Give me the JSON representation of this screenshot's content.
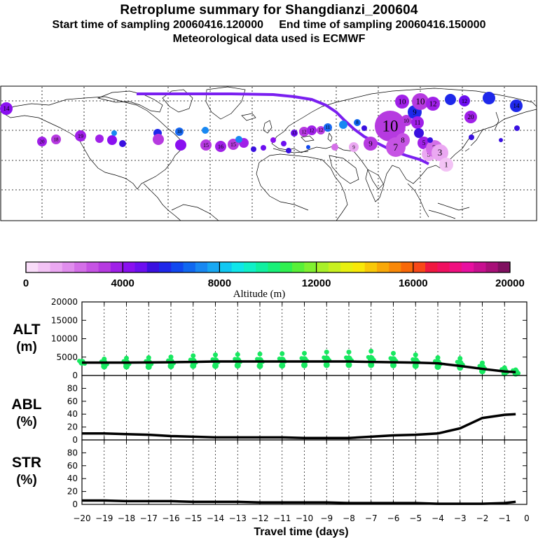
{
  "title": "Retroplume summary for Shangdianzi_200604",
  "subtitle": "Start time of sampling 20060416.120000     End time of sampling 20060416.150000",
  "met_note": "Meteorological data used is ECMWF",
  "colorbar": {
    "label": "Altitude (m)",
    "ticks": [
      "0",
      "4000",
      "8000",
      "12000",
      "16000",
      "20000"
    ],
    "min": 0,
    "max": 20000,
    "colors": [
      "#f9dcf9",
      "#f3c3f5",
      "#eba8f2",
      "#e08ded",
      "#d46fe8",
      "#c653e4",
      "#b63ae0",
      "#a020e8",
      "#8a10f0",
      "#6c0ff0",
      "#3a10e0",
      "#1e28ea",
      "#1048f0",
      "#1068f0",
      "#1888f2",
      "#18a8f2",
      "#10c8f2",
      "#10e6ea",
      "#10f0c8",
      "#10f0a0",
      "#18f078",
      "#30f050",
      "#58f038",
      "#80f030",
      "#a8f028",
      "#c8f020",
      "#e8f010",
      "#f8e808",
      "#f8c808",
      "#f8a808",
      "#f88808",
      "#f86808",
      "#f84818",
      "#f01840",
      "#f01060",
      "#f01080",
      "#e810a0",
      "#c81090",
      "#a81078",
      "#801060"
    ]
  },
  "map_markers": {
    "labels": [
      "1",
      "2",
      "3",
      "4",
      "5",
      "6",
      "7",
      "8",
      "9",
      "10",
      "10",
      "10",
      "11",
      "12",
      "13",
      "14",
      "15",
      "16",
      "17",
      "18",
      "19",
      "20"
    ]
  },
  "chart_data": [
    {
      "type": "scatter",
      "panel": "ALT",
      "ylabel": "ALT\n(m)",
      "ylim": [
        0,
        20000
      ],
      "yticks": [
        "0",
        "5000",
        "10000",
        "15000",
        "20000"
      ],
      "line": {
        "x": [
          -20,
          -19,
          -18,
          -17,
          -16,
          -15,
          -14,
          -13,
          -12,
          -11,
          -10,
          -9,
          -8,
          -7,
          -6,
          -5,
          -4,
          -3,
          -2,
          -1,
          -0.5
        ],
        "y": [
          3500,
          3500,
          3500,
          3550,
          3600,
          3700,
          3800,
          3800,
          3800,
          3800,
          3800,
          3800,
          3800,
          3700,
          3600,
          3500,
          3300,
          2600,
          1800,
          1100,
          900
        ]
      },
      "points": {
        "x": [
          -20,
          -19,
          -18,
          -17,
          -16,
          -15,
          -14,
          -13,
          -12,
          -11,
          -10,
          -9,
          -8,
          -7,
          -6,
          -5,
          -4,
          -3,
          -2,
          -1,
          -0.5
        ],
        "y": [
          3600,
          3400,
          3500,
          3500,
          3700,
          3900,
          4000,
          4100,
          4100,
          4200,
          4300,
          4500,
          4500,
          4600,
          4300,
          4000,
          3500,
          3300,
          2200,
          1300,
          1000
        ]
      }
    },
    {
      "type": "line",
      "panel": "ABL",
      "ylabel": "ABL\n(%)",
      "ylim": [
        0,
        100
      ],
      "yticks": [
        "0",
        "20",
        "40",
        "60",
        "80"
      ],
      "x": [
        -20,
        -19,
        -18,
        -17,
        -16,
        -15,
        -14,
        -13,
        -12,
        -11,
        -10,
        -9,
        -8,
        -7,
        -6,
        -5,
        -4,
        -3,
        -2,
        -1,
        -0.5
      ],
      "y": [
        10,
        10,
        9,
        8,
        6,
        5,
        4,
        4,
        4,
        4,
        3,
        3,
        3,
        5,
        7,
        8,
        10,
        18,
        34,
        39,
        40
      ]
    },
    {
      "type": "line",
      "panel": "STR",
      "ylabel": "STR\n(%)",
      "ylim": [
        0,
        100
      ],
      "yticks": [
        "0",
        "20",
        "40",
        "60",
        "80"
      ],
      "x": [
        -20,
        -19,
        -18,
        -17,
        -16,
        -15,
        -14,
        -13,
        -12,
        -11,
        -10,
        -9,
        -8,
        -7,
        -6,
        -5,
        -4,
        -3,
        -2,
        -1,
        -0.5
      ],
      "y": [
        6,
        6,
        5,
        5,
        5,
        4,
        4,
        4,
        3,
        3,
        3,
        3,
        2,
        2,
        2,
        2,
        1,
        1,
        1,
        2,
        4
      ]
    }
  ],
  "xaxis": {
    "xlim": [
      -20,
      0
    ],
    "ticks": [
      "-20",
      "-19",
      "-18",
      "-17",
      "-16",
      "-15",
      "-14",
      "-13",
      "-12",
      "-11",
      "-10",
      "-9",
      "-8",
      "-7",
      "-6",
      "-5",
      "-4",
      "-3",
      "-2",
      "-1",
      "0"
    ],
    "label": "Travel time (days)"
  }
}
